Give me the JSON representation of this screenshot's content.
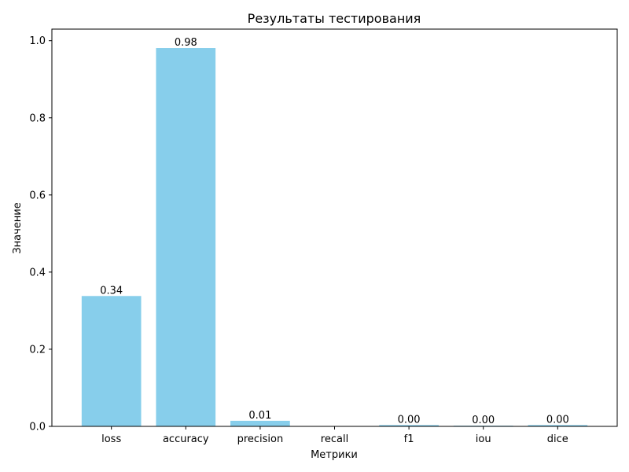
{
  "chart_data": {
    "type": "bar",
    "title": "Результаты тестирования",
    "xlabel": "Метрики",
    "ylabel": "Значение",
    "categories": [
      "loss",
      "accuracy",
      "precision",
      "recall",
      "f1",
      "iou",
      "dice"
    ],
    "values": [
      0.338,
      0.981,
      0.0145,
      0.0,
      0.0035,
      0.0018,
      0.0035
    ],
    "data_labels": [
      "0.34",
      "0.98",
      "0.01",
      "",
      "0.00",
      "0.00",
      "0.00"
    ],
    "ylim": [
      0,
      1.03
    ],
    "yticks": [
      0.0,
      0.2,
      0.4,
      0.6,
      0.8,
      1.0
    ],
    "ytick_labels": [
      "0.0",
      "0.2",
      "0.4",
      "0.6",
      "0.8",
      "1.0"
    ],
    "bar_color": "#87CEEB",
    "grid": false,
    "legend": "none"
  }
}
